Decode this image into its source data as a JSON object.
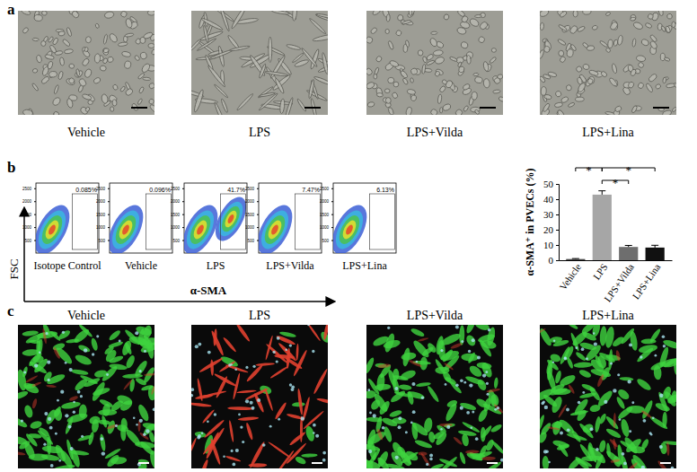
{
  "panel_a": {
    "label": "a",
    "captions": [
      "Vehicle",
      "LPS",
      "LPS+Vilda",
      "LPS+Lina"
    ]
  },
  "panel_b": {
    "label": "b",
    "y_label": "FSC",
    "x_label": "α-SMA",
    "fsc_lim": [
      0,
      2700
    ],
    "fsc_ticks": [
      500,
      1000,
      1500,
      2000,
      2500
    ],
    "plots": [
      {
        "caption": "Isotope Control",
        "gate_label": "0.085%"
      },
      {
        "caption": "Vehicle",
        "gate_label": "0.096%"
      },
      {
        "caption": "LPS",
        "gate_label": "41.7%"
      },
      {
        "caption": "LPS+Vilda",
        "gate_label": "7.47%"
      },
      {
        "caption": "LPS+Lina",
        "gate_label": "6.13%"
      }
    ]
  },
  "panel_c": {
    "label": "c",
    "captions": [
      "Vehicle",
      "LPS",
      "LPS+Vilda",
      "LPS+Lina"
    ]
  },
  "chart_data": {
    "type": "bar",
    "categories": [
      "Vehicle",
      "LPS",
      "LPS+Vilda",
      "LPS+Lina"
    ],
    "values": [
      0.8,
      43,
      8.7,
      8.3
    ],
    "errors": [
      0.3,
      2.5,
      1.0,
      1.5
    ],
    "colors": [
      "#4d4d4d",
      "#a6a6a6",
      "#6e6e6e",
      "#111111"
    ],
    "y_label": "α-SMA⁺ in PVECs (%)",
    "ylim": [
      0,
      50
    ],
    "yticks": [
      0,
      10,
      20,
      30,
      40,
      50
    ],
    "comparisons": [
      {
        "groups": [
          "Vehicle",
          "LPS"
        ],
        "label": "*"
      },
      {
        "groups": [
          "LPS",
          "LPS+Lina"
        ],
        "label": "*"
      },
      {
        "groups": [
          "LPS",
          "LPS+Vilda"
        ],
        "label": "*"
      }
    ]
  }
}
